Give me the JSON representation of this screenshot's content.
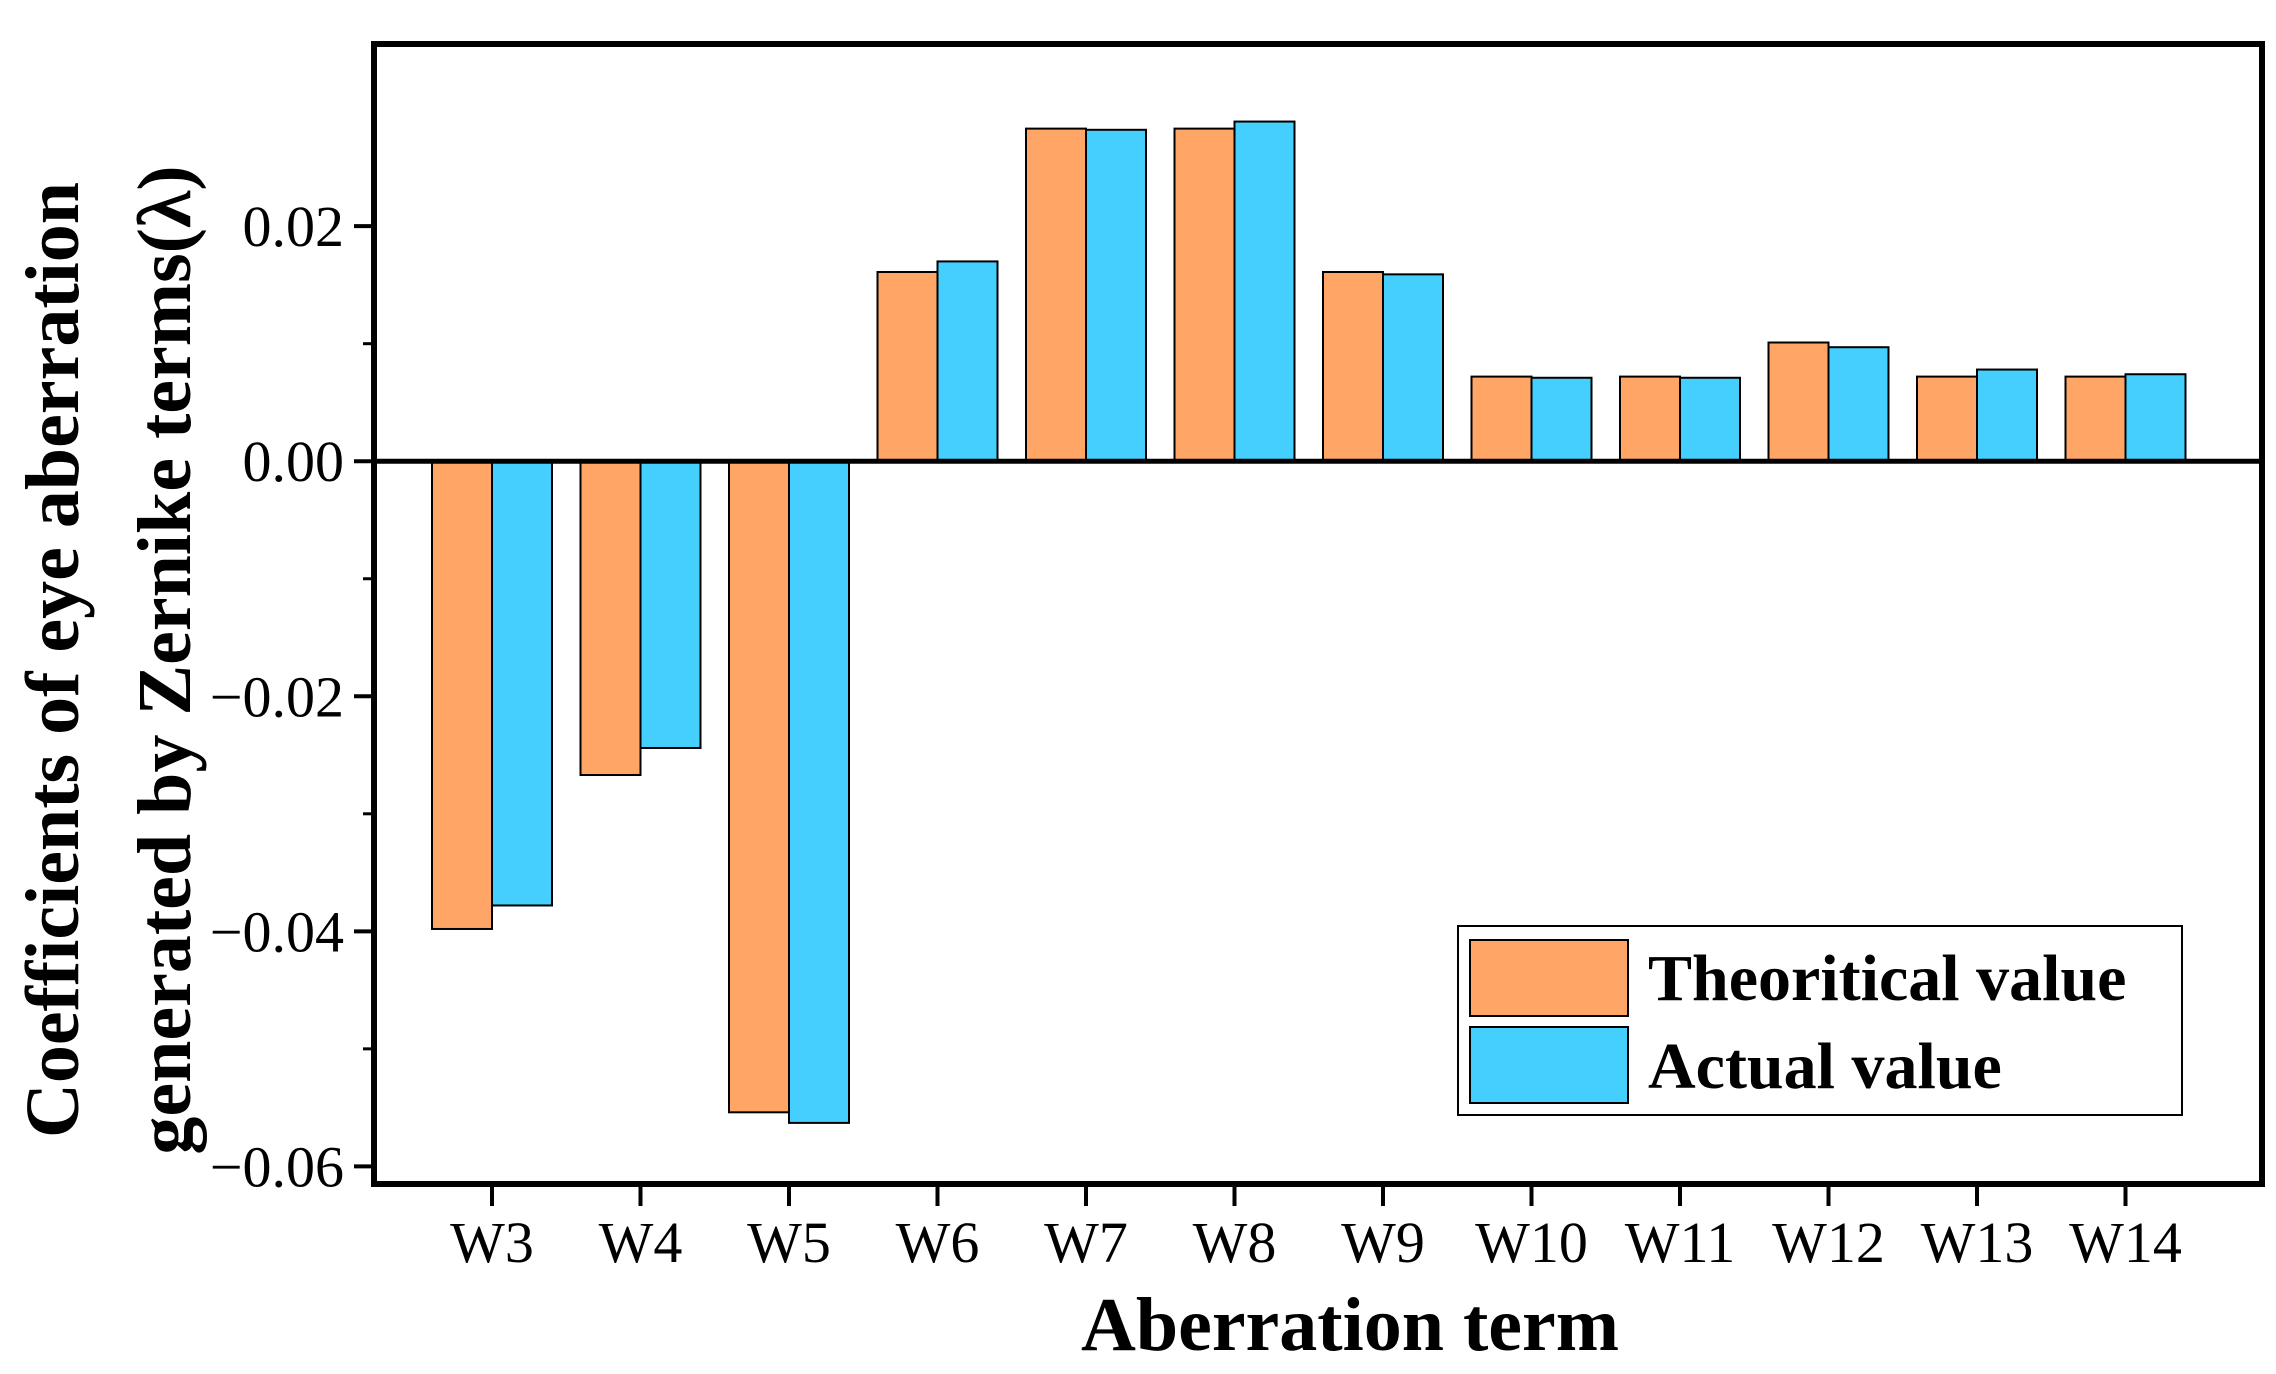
{
  "chart_data": {
    "type": "bar",
    "categories": [
      "W3",
      "W4",
      "W5",
      "W6",
      "W7",
      "W8",
      "W9",
      "W10",
      "W11",
      "W12",
      "W13",
      "W14"
    ],
    "series": [
      {
        "name": "Theoritical value",
        "color": "#FFA666",
        "values": [
          -0.0398,
          -0.0267,
          -0.0554,
          0.0161,
          0.0283,
          0.0283,
          0.0161,
          0.0072,
          0.0072,
          0.0101,
          0.0072,
          0.0072
        ]
      },
      {
        "name": "Actual value",
        "color": "#45CFFF",
        "values": [
          -0.0378,
          -0.0244,
          -0.0563,
          0.017,
          0.0282,
          0.0289,
          0.0159,
          0.0071,
          0.0071,
          0.0097,
          0.0078,
          0.0074
        ]
      }
    ],
    "title": "",
    "xlabel": "Aberration term",
    "ylabel_line1": "Coefficients of eye aberration",
    "ylabel_line2": "generated by Zernike terms(λ)",
    "ylim": [
      -0.0615,
      0.0355
    ],
    "yticks": [
      -0.06,
      -0.04,
      -0.02,
      0.0,
      0.02
    ],
    "ytick_labels": [
      "−0.06",
      "−0.04",
      "−0.02",
      "0.00",
      "0.02"
    ],
    "legend_position": "bottom-right",
    "grid": false
  }
}
